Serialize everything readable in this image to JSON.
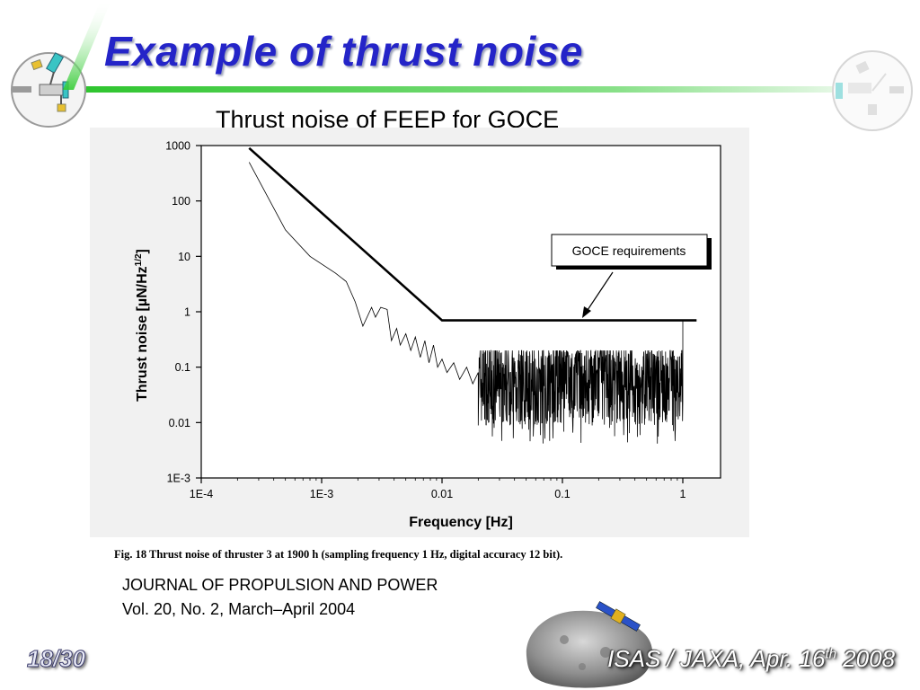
{
  "slide": {
    "title": "Example of thrust noise",
    "chart_caption": "Thrust noise of FEEP for GOCE",
    "journal_line1": "JOURNAL OF PROPULSION AND POWER",
    "journal_line2": "Vol. 20, No. 2, March–April 2004",
    "page_number": "18/30",
    "footer_prefix": "ISAS / JAXA, Apr. 16",
    "footer_sup": "th",
    "footer_suffix": " 2008",
    "accent_color": "#2424c8",
    "rule_color": "#33cc33"
  },
  "chart_data": {
    "type": "line",
    "x_scale": "log",
    "y_scale": "log",
    "xlim": [
      0.0001,
      1.3
    ],
    "ylim": [
      0.001,
      1000
    ],
    "xlabel": "Frequency [Hz]",
    "ylabel_main": "Thrust noise [µN/Hz",
    "ylabel_sup": "1/2",
    "ylabel_close": "]",
    "x_ticks": [
      0.0001,
      0.001,
      0.01,
      0.1,
      1
    ],
    "x_tick_labels": [
      "1E-4",
      "1E-3",
      "0.01",
      "0.1",
      "1"
    ],
    "y_ticks": [
      0.001,
      0.01,
      0.1,
      1,
      10,
      100,
      1000
    ],
    "y_tick_labels": [
      "1E-3",
      "0.01",
      "0.1",
      "1",
      "10",
      "100",
      "1000"
    ],
    "annotation": "GOCE requirements",
    "figure_caption": "Fig. 18    Thrust noise of thruster 3 at 1900 h (sampling frequency 1 Hz, digital accuracy 12 bit).",
    "series": [
      {
        "style": "thick",
        "x": [
          0.00025,
          0.01,
          1.3
        ],
        "y": [
          900,
          0.7,
          0.7
        ]
      },
      {
        "style": "thin",
        "x": [
          0.00025,
          0.0005,
          0.0008,
          0.0013,
          0.0016,
          0.0019,
          0.0022,
          0.0026,
          0.0028,
          0.0031,
          0.0035,
          0.0038,
          0.0042,
          0.0045,
          0.005,
          0.0055,
          0.006,
          0.0066,
          0.0072,
          0.0078,
          0.0085,
          0.0092,
          0.01,
          0.011,
          0.0125,
          0.014,
          0.016,
          0.018,
          0.02
        ],
        "y": [
          500,
          30,
          10,
          5,
          3.5,
          1.5,
          0.55,
          1.2,
          0.8,
          1.2,
          1.1,
          0.3,
          0.5,
          0.25,
          0.4,
          0.2,
          0.35,
          0.15,
          0.3,
          0.12,
          0.25,
          0.1,
          0.14,
          0.08,
          0.12,
          0.06,
          0.1,
          0.05,
          0.08
        ]
      }
    ],
    "noise_band": {
      "x_start": 0.02,
      "x_end": 1.0,
      "y_center": 0.05,
      "y_low": 0.004,
      "y_high": 0.2
    }
  }
}
